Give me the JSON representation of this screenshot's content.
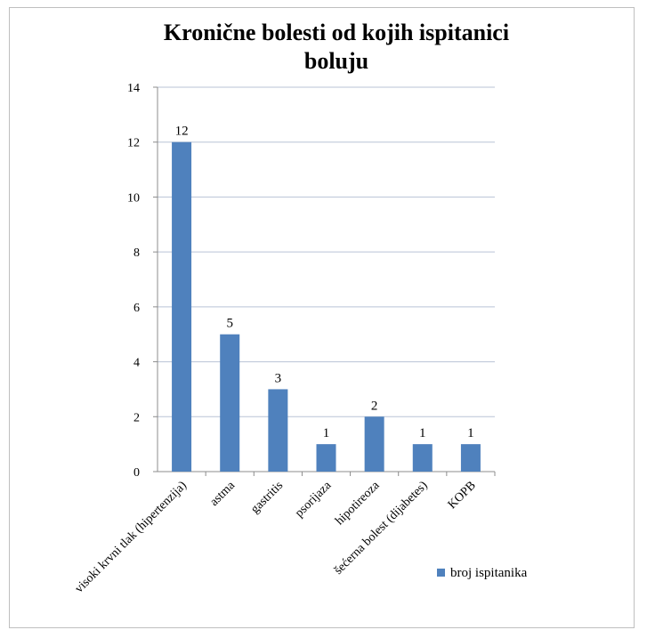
{
  "chart_data": {
    "type": "bar",
    "title_lines": [
      "Kronične bolesti od kojih ispitanici",
      "boluju"
    ],
    "categories": [
      "visoki krvni tlak (hipertenzija)",
      "astma",
      "gastritis",
      "psorijaza",
      "hipotireoza",
      "šećerna bolest (dijabetes)",
      "KOPB"
    ],
    "series": [
      {
        "name": "broj ispitanika",
        "values": [
          12,
          5,
          3,
          1,
          2,
          1,
          1
        ],
        "color": "#4f81bd"
      }
    ],
    "ylim": [
      0,
      14
    ],
    "yticks": [
      0,
      2,
      4,
      6,
      8,
      10,
      12,
      14
    ],
    "grid": true,
    "legend_position": "right",
    "xlabel": "",
    "ylabel": ""
  }
}
